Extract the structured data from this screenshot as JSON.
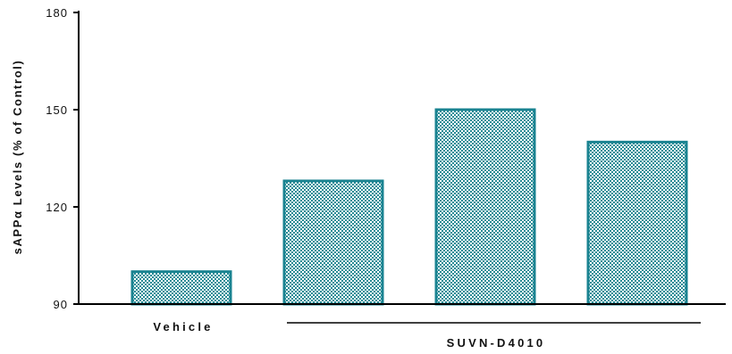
{
  "chart_data": {
    "type": "bar",
    "categories": [
      "Vehicle",
      "",
      "",
      ""
    ],
    "values": [
      100,
      128,
      150,
      140
    ],
    "ylim": [
      90,
      180
    ],
    "yticks": [
      90,
      120,
      150,
      180
    ],
    "ylabel": "sAPPα Levels (% of Control)",
    "xlabel": "",
    "group_label": "SUVN-D4010",
    "grid": false,
    "bar_color": "#1a8391",
    "bar_fill": "checkered"
  }
}
